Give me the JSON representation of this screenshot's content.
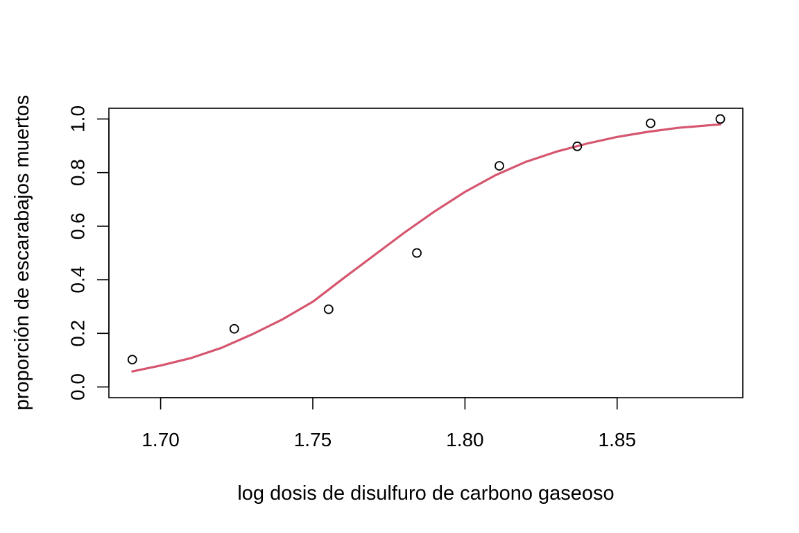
{
  "chart_data": {
    "type": "scatter",
    "title": "",
    "xlabel": "log dosis de disulfuro de carbono gaseoso",
    "ylabel": "proporción de escarabajos muertos",
    "xlim": [
      1.683,
      1.8913
    ],
    "ylim": [
      -0.04,
      1.04
    ],
    "grid": false,
    "legend": "none",
    "x_ticks": [
      1.7,
      1.75,
      1.8,
      1.85
    ],
    "x_tick_labels": [
      "1.70",
      "1.75",
      "1.80",
      "1.85"
    ],
    "y_ticks": [
      0.0,
      0.2,
      0.4,
      0.6,
      0.8,
      1.0
    ],
    "y_tick_labels": [
      "0.0",
      "0.2",
      "0.4",
      "0.6",
      "0.8",
      "1.0"
    ],
    "points": {
      "x": [
        1.6907,
        1.7242,
        1.7552,
        1.7842,
        1.8113,
        1.8369,
        1.861,
        1.8839
      ],
      "y": [
        0.102,
        0.217,
        0.29,
        0.5,
        0.825,
        0.898,
        0.984,
        1.0
      ]
    },
    "fit": {
      "x": [
        1.6907,
        1.7,
        1.71,
        1.72,
        1.73,
        1.74,
        1.75,
        1.76,
        1.77,
        1.78,
        1.79,
        1.8,
        1.81,
        1.82,
        1.83,
        1.84,
        1.85,
        1.86,
        1.87,
        1.8839
      ],
      "y": [
        0.058,
        0.08,
        0.108,
        0.146,
        0.196,
        0.252,
        0.318,
        0.405,
        0.49,
        0.575,
        0.655,
        0.728,
        0.79,
        0.84,
        0.878,
        0.908,
        0.933,
        0.952,
        0.967,
        0.98
      ]
    },
    "colors": {
      "fit_line": "#d5566e",
      "points": "#000000",
      "axes": "#000000"
    }
  }
}
